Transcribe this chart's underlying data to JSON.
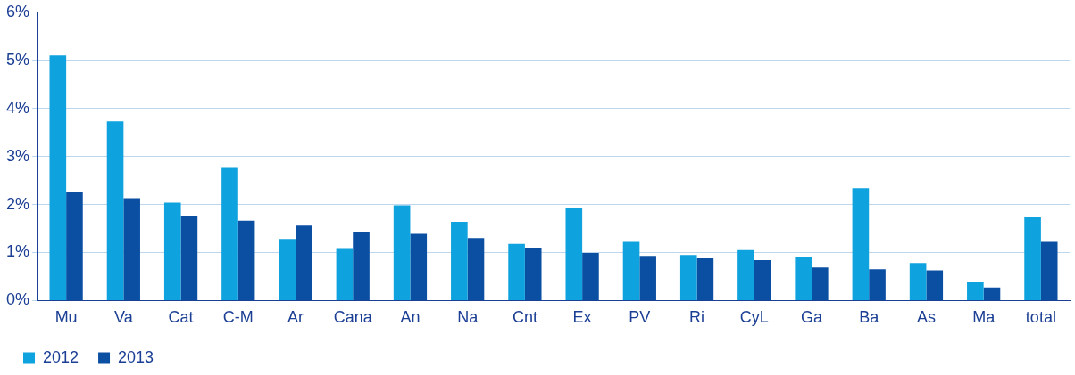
{
  "chart_data": {
    "type": "bar",
    "categories": [
      "Mu",
      "Va",
      "Cat",
      "C-M",
      "Ar",
      "Cana",
      "An",
      "Na",
      "Cnt",
      "Ex",
      "PV",
      "Ri",
      "CyL",
      "Ga",
      "Ba",
      "As",
      "Ma",
      "total"
    ],
    "series": [
      {
        "name": "2012",
        "color": "#0ea2de",
        "values": [
          5.1,
          3.73,
          2.04,
          2.76,
          1.28,
          1.09,
          1.98,
          1.64,
          1.18,
          1.92,
          1.22,
          0.95,
          1.05,
          0.91,
          2.34,
          0.78,
          0.38,
          1.73
        ]
      },
      {
        "name": "2013",
        "color": "#0b4fa3",
        "values": [
          2.25,
          2.13,
          1.75,
          1.66,
          1.56,
          1.43,
          1.39,
          1.3,
          1.1,
          0.99,
          0.93,
          0.88,
          0.84,
          0.69,
          0.65,
          0.63,
          0.27,
          1.22
        ]
      }
    ],
    "ylim": [
      0,
      6
    ],
    "yticks": [
      {
        "value": 0,
        "label": "0%"
      },
      {
        "value": 1,
        "label": "1%"
      },
      {
        "value": 2,
        "label": "2%"
      },
      {
        "value": 3,
        "label": "3%"
      },
      {
        "value": 4,
        "label": "4%"
      },
      {
        "value": 5,
        "label": "5%"
      },
      {
        "value": 6,
        "label": "6%"
      }
    ],
    "grid": "y",
    "legend": "bottom left"
  }
}
